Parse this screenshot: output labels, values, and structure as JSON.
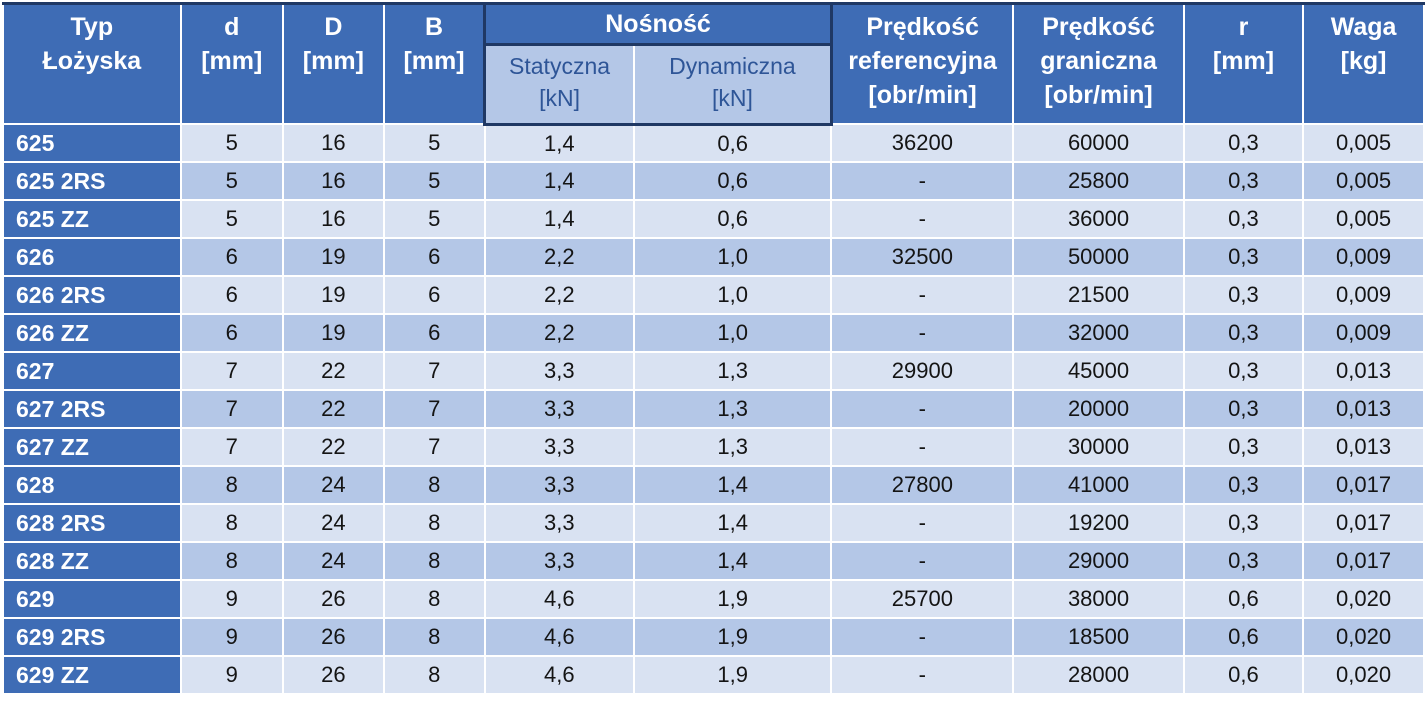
{
  "header": {
    "type": "Typ\nŁożyska",
    "d": "d\n[mm]",
    "D": "D\n[mm]",
    "B": "B\n[mm]",
    "nosnosc": "Nośność",
    "statyczna": "Statyczna\n[kN]",
    "dynamiczna": "Dynamiczna\n[kN]",
    "predkosc_referencyjna": "Prędkość\nreferencyjna\n[obr/min]",
    "predkosc_graniczna": "Prędkość\ngraniczna\n[obr/min]",
    "r": "r\n[mm]",
    "waga": "Waga\n[kg]"
  },
  "colors": {
    "header_blue": "#3e6cb5",
    "subheader_bg": "#b4c7e7",
    "subheader_text": "#2e5597",
    "band_light": "#d9e2f2",
    "band_dark": "#b4c7e7",
    "outline_navy": "#1f3864",
    "grid_white": "#ffffff"
  },
  "chart_data": {
    "type": "table",
    "columns": [
      "Typ Łożyska",
      "d [mm]",
      "D [mm]",
      "B [mm]",
      "Nośność Statyczna [kN]",
      "Nośność Dynamiczna [kN]",
      "Prędkość referencyjna [obr/min]",
      "Prędkość graniczna [obr/min]",
      "r [mm]",
      "Waga [kg]"
    ],
    "rows": [
      [
        "625",
        "5",
        "16",
        "5",
        "1,4",
        "0,6",
        "36200",
        "60000",
        "0,3",
        "0,005"
      ],
      [
        "625 2RS",
        "5",
        "16",
        "5",
        "1,4",
        "0,6",
        "-",
        "25800",
        "0,3",
        "0,005"
      ],
      [
        "625 ZZ",
        "5",
        "16",
        "5",
        "1,4",
        "0,6",
        "-",
        "36000",
        "0,3",
        "0,005"
      ],
      [
        "626",
        "6",
        "19",
        "6",
        "2,2",
        "1,0",
        "32500",
        "50000",
        "0,3",
        "0,009"
      ],
      [
        "626 2RS",
        "6",
        "19",
        "6",
        "2,2",
        "1,0",
        "-",
        "21500",
        "0,3",
        "0,009"
      ],
      [
        "626 ZZ",
        "6",
        "19",
        "6",
        "2,2",
        "1,0",
        "-",
        "32000",
        "0,3",
        "0,009"
      ],
      [
        "627",
        "7",
        "22",
        "7",
        "3,3",
        "1,3",
        "29900",
        "45000",
        "0,3",
        "0,013"
      ],
      [
        "627 2RS",
        "7",
        "22",
        "7",
        "3,3",
        "1,3",
        "-",
        "20000",
        "0,3",
        "0,013"
      ],
      [
        "627 ZZ",
        "7",
        "22",
        "7",
        "3,3",
        "1,3",
        "-",
        "30000",
        "0,3",
        "0,013"
      ],
      [
        "628",
        "8",
        "24",
        "8",
        "3,3",
        "1,4",
        "27800",
        "41000",
        "0,3",
        "0,017"
      ],
      [
        "628 2RS",
        "8",
        "24",
        "8",
        "3,3",
        "1,4",
        "-",
        "19200",
        "0,3",
        "0,017"
      ],
      [
        "628 ZZ",
        "8",
        "24",
        "8",
        "3,3",
        "1,4",
        "-",
        "29000",
        "0,3",
        "0,017"
      ],
      [
        "629",
        "9",
        "26",
        "8",
        "4,6",
        "1,9",
        "25700",
        "38000",
        "0,6",
        "0,020"
      ],
      [
        "629 2RS",
        "9",
        "26",
        "8",
        "4,6",
        "1,9",
        "-",
        "18500",
        "0,6",
        "0,020"
      ],
      [
        "629 ZZ",
        "9",
        "26",
        "8",
        "4,6",
        "1,9",
        "-",
        "28000",
        "0,6",
        "0,020"
      ]
    ],
    "banding": "alternating rows: even index light #d9e2f2, odd index dark #b4c7e7",
    "legend_position": "none",
    "title": ""
  }
}
